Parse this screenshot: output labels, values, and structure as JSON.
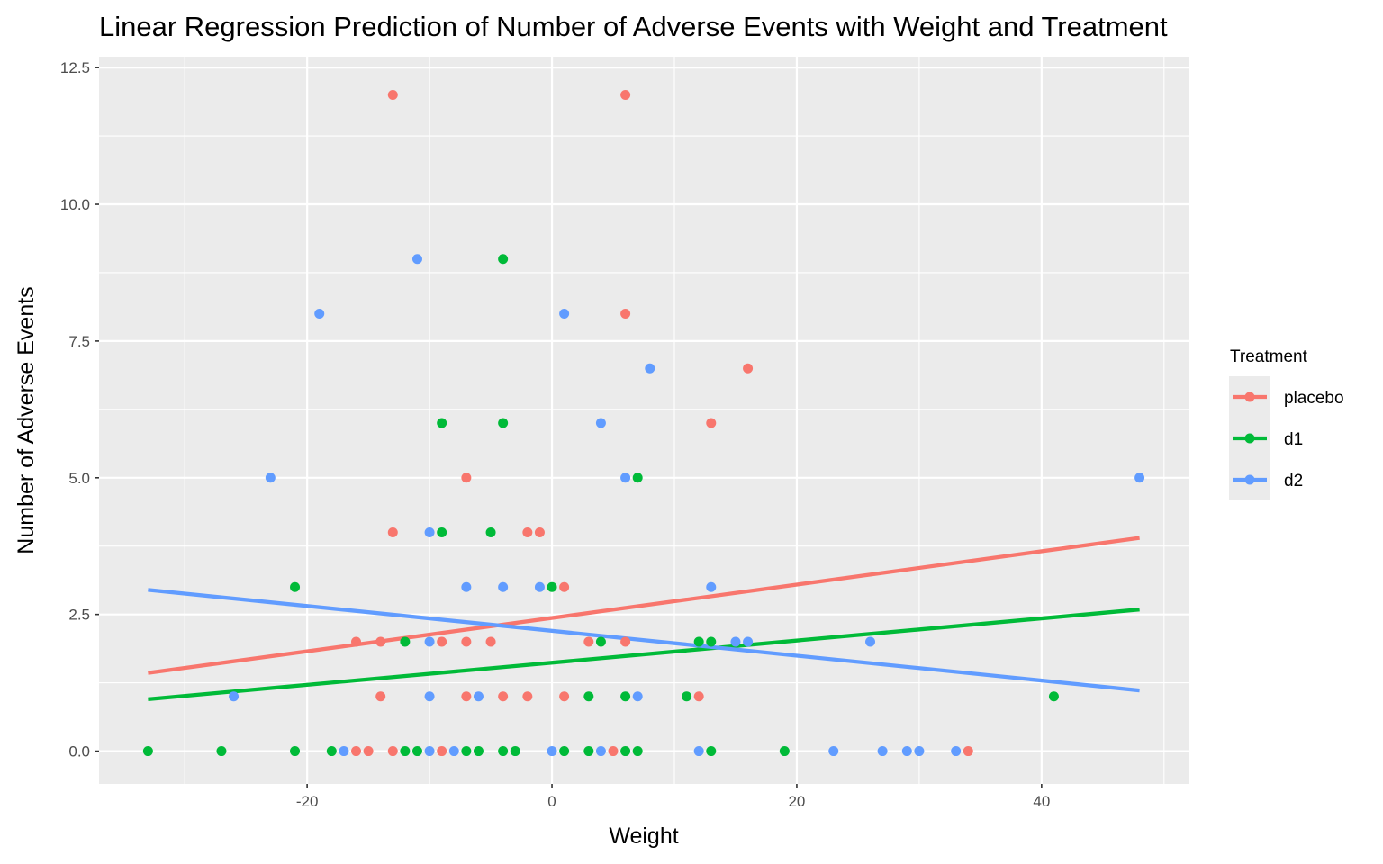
{
  "chart_data": {
    "type": "scatter",
    "title": "Linear Regression Prediction of Number of Adverse Events with Weight and Treatment",
    "xlabel": "Weight",
    "ylabel": "Number of Adverse Events",
    "xlim": [
      -37,
      52
    ],
    "ylim": [
      -0.6,
      12.7
    ],
    "x_ticks": [
      -20,
      0,
      20,
      40
    ],
    "x_tick_labels": [
      "-20",
      "0",
      "20",
      "40"
    ],
    "x_minor_ticks": [
      -30,
      -10,
      10,
      30,
      50
    ],
    "y_ticks": [
      0,
      2.5,
      5,
      7.5,
      10,
      12.5
    ],
    "y_tick_labels": [
      "0.0",
      "2.5",
      "5.0",
      "7.5",
      "10.0",
      "12.5"
    ],
    "y_minor_ticks": [
      1.25,
      3.75,
      6.25,
      8.75,
      11.25
    ],
    "grid": true,
    "legend": {
      "title": "Treatment",
      "position": "right"
    },
    "colors": {
      "placebo": "#f8766d",
      "d1": "#00ba38",
      "d2": "#619cff",
      "panel": "#ebebeb",
      "grid": "#ffffff"
    },
    "series": [
      {
        "name": "placebo",
        "color": "#f8766d",
        "points": [
          [
            -13,
            12
          ],
          [
            6,
            12
          ],
          [
            6,
            8
          ],
          [
            16,
            7
          ],
          [
            13,
            6
          ],
          [
            -7,
            5
          ],
          [
            -13,
            4
          ],
          [
            -2,
            4
          ],
          [
            -1,
            4
          ],
          [
            1,
            3
          ],
          [
            -16,
            2
          ],
          [
            -14,
            2
          ],
          [
            -9,
            2
          ],
          [
            -7,
            2
          ],
          [
            -5,
            2
          ],
          [
            3,
            2
          ],
          [
            6,
            2
          ],
          [
            -14,
            1
          ],
          [
            -7,
            1
          ],
          [
            -4,
            1
          ],
          [
            -2,
            1
          ],
          [
            1,
            1
          ],
          [
            12,
            1
          ],
          [
            -16,
            0
          ],
          [
            -15,
            0
          ],
          [
            -13,
            0
          ],
          [
            -9,
            0
          ],
          [
            5,
            0
          ],
          [
            34,
            0
          ]
        ],
        "fit": [
          [
            -33,
            1.43
          ],
          [
            48,
            3.9
          ]
        ]
      },
      {
        "name": "d1",
        "color": "#00ba38",
        "points": [
          [
            -4,
            9
          ],
          [
            -9,
            6
          ],
          [
            -4,
            6
          ],
          [
            7,
            5
          ],
          [
            -9,
            4
          ],
          [
            -5,
            4
          ],
          [
            -21,
            3
          ],
          [
            0,
            3
          ],
          [
            -12,
            2
          ],
          [
            4,
            2
          ],
          [
            12,
            2
          ],
          [
            13,
            2
          ],
          [
            3,
            1
          ],
          [
            6,
            1
          ],
          [
            11,
            1
          ],
          [
            41,
            1
          ],
          [
            -33,
            0
          ],
          [
            -27,
            0
          ],
          [
            -21,
            0
          ],
          [
            -18,
            0
          ],
          [
            -12,
            0
          ],
          [
            -11,
            0
          ],
          [
            -7,
            0
          ],
          [
            -6,
            0
          ],
          [
            -4,
            0
          ],
          [
            -3,
            0
          ],
          [
            1,
            0
          ],
          [
            3,
            0
          ],
          [
            6,
            0
          ],
          [
            7,
            0
          ],
          [
            13,
            0
          ],
          [
            19,
            0
          ]
        ],
        "fit": [
          [
            -33,
            0.95
          ],
          [
            48,
            2.59
          ]
        ]
      },
      {
        "name": "d2",
        "color": "#619cff",
        "points": [
          [
            -11,
            9
          ],
          [
            -19,
            8
          ],
          [
            1,
            8
          ],
          [
            8,
            7
          ],
          [
            4,
            6
          ],
          [
            -23,
            5
          ],
          [
            6,
            5
          ],
          [
            48,
            5
          ],
          [
            -10,
            4
          ],
          [
            -7,
            3
          ],
          [
            -4,
            3
          ],
          [
            -1,
            3
          ],
          [
            13,
            3
          ],
          [
            -10,
            2
          ],
          [
            15,
            2
          ],
          [
            16,
            2
          ],
          [
            26,
            2
          ],
          [
            -26,
            1
          ],
          [
            -10,
            1
          ],
          [
            -6,
            1
          ],
          [
            7,
            1
          ],
          [
            -17,
            0
          ],
          [
            -10,
            0
          ],
          [
            -8,
            0
          ],
          [
            0,
            0
          ],
          [
            4,
            0
          ],
          [
            12,
            0
          ],
          [
            23,
            0
          ],
          [
            27,
            0
          ],
          [
            29,
            0
          ],
          [
            30,
            0
          ],
          [
            33,
            0
          ]
        ],
        "fit": [
          [
            -33,
            2.95
          ],
          [
            48,
            1.11
          ]
        ]
      }
    ]
  }
}
